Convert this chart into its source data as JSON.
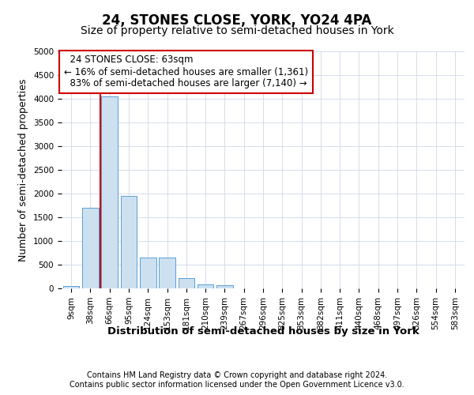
{
  "title": "24, STONES CLOSE, YORK, YO24 4PA",
  "subtitle": "Size of property relative to semi-detached houses in York",
  "xlabel": "Distribution of semi-detached houses by size in York",
  "ylabel": "Number of semi-detached properties",
  "footer_line1": "Contains HM Land Registry data © Crown copyright and database right 2024.",
  "footer_line2": "Contains public sector information licensed under the Open Government Licence v3.0.",
  "property_label": "24 STONES CLOSE: 63sqm",
  "pct_smaller": 16,
  "n_smaller": 1361,
  "pct_larger": 83,
  "n_larger": 7140,
  "bin_labels": [
    "9sqm",
    "38sqm",
    "66sqm",
    "95sqm",
    "124sqm",
    "153sqm",
    "181sqm",
    "210sqm",
    "239sqm",
    "267sqm",
    "296sqm",
    "325sqm",
    "353sqm",
    "382sqm",
    "411sqm",
    "440sqm",
    "468sqm",
    "497sqm",
    "526sqm",
    "554sqm",
    "583sqm"
  ],
  "bar_values": [
    50,
    1700,
    4050,
    1950,
    650,
    650,
    220,
    90,
    65,
    0,
    0,
    0,
    0,
    0,
    0,
    0,
    0,
    0,
    0,
    0,
    0
  ],
  "bar_color": "#cce0f0",
  "bar_edge_color": "#5a9fd4",
  "vline_color": "#cc0000",
  "vline_x": 1.5,
  "ylim": [
    0,
    5000
  ],
  "yticks": [
    0,
    500,
    1000,
    1500,
    2000,
    2500,
    3000,
    3500,
    4000,
    4500,
    5000
  ],
  "background_color": "#ffffff",
  "grid_color": "#d0d8e8",
  "annotation_box_color": "#ffffff",
  "annotation_box_edge": "#cc0000",
  "title_fontsize": 12,
  "subtitle_fontsize": 10,
  "axis_label_fontsize": 9,
  "tick_fontsize": 7.5,
  "annotation_fontsize": 8.5,
  "footer_fontsize": 7
}
